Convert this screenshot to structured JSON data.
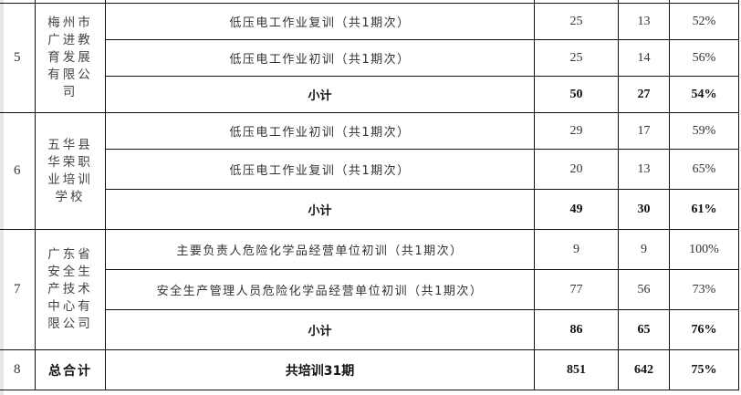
{
  "groups": [
    {
      "index": "5",
      "org": "梅州市广进教育发展有限公司",
      "courses": [
        {
          "name": "低压电工作业复训（共1期次）",
          "enrolled": "25",
          "passed": "13",
          "rate": "52%"
        },
        {
          "name": "低压电工作业初训（共1期次）",
          "enrolled": "25",
          "passed": "14",
          "rate": "56%"
        }
      ],
      "subtotal": {
        "label": "小计",
        "enrolled": "50",
        "passed": "27",
        "rate": "54%"
      }
    },
    {
      "index": "6",
      "org": "五华县华荣职业培训学校",
      "courses": [
        {
          "name": "低压电工作业初训（共1期次）",
          "enrolled": "29",
          "passed": "17",
          "rate": "59%"
        },
        {
          "name": "低压电工作业复训（共1期次）",
          "enrolled": "20",
          "passed": "13",
          "rate": "65%"
        }
      ],
      "subtotal": {
        "label": "小计",
        "enrolled": "49",
        "passed": "30",
        "rate": "61%"
      }
    },
    {
      "index": "7",
      "org": "广东省安全生产技术中心有限公司",
      "courses": [
        {
          "name": "主要负责人危险化学品经营单位初训（共1期次）",
          "enrolled": "9",
          "passed": "9",
          "rate": "100%"
        },
        {
          "name": "安全生产管理人员危险化学品经营单位初训（共1期次）",
          "enrolled": "77",
          "passed": "56",
          "rate": "73%"
        }
      ],
      "subtotal": {
        "label": "小计",
        "enrolled": "86",
        "passed": "65",
        "rate": "76%"
      }
    }
  ],
  "total": {
    "index": "8",
    "label": "总合计",
    "summary": "共培训31期",
    "enrolled": "851",
    "passed": "642",
    "rate": "75%"
  }
}
